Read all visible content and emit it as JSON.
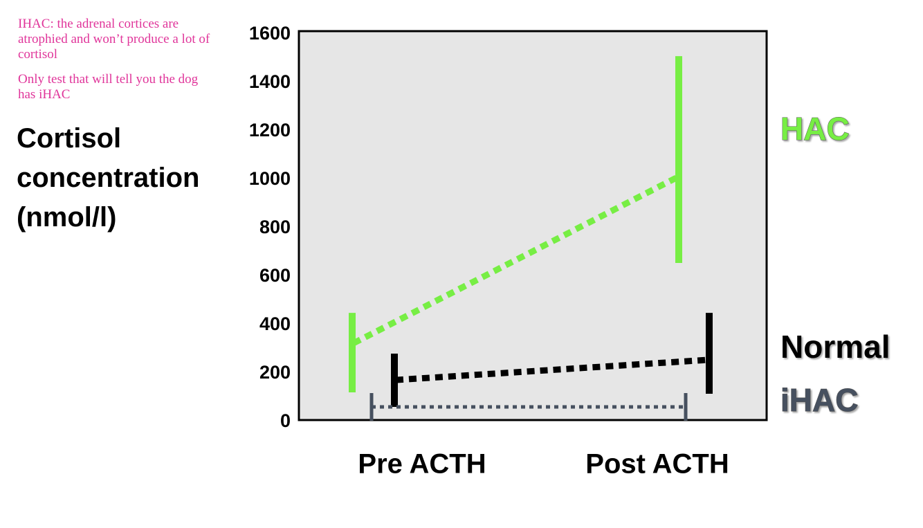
{
  "chart_data": {
    "type": "range-line",
    "annotations": [
      "IHAC: the adrenal cortices are atrophied and won’t produce a lot of cortisol",
      "Only test that will tell you the dog has iHAC"
    ],
    "ylabel": "Cortisol concentration (nmol/l)",
    "categories": [
      "Pre ACTH",
      "Post ACTH"
    ],
    "ylim": [
      0,
      1600
    ],
    "yticks": [
      0,
      200,
      400,
      600,
      800,
      1000,
      1200,
      1400,
      1600
    ],
    "series": [
      {
        "name": "HAC",
        "color": "#77ee44",
        "values": [
          326,
          1011
        ],
        "ranges": [
          [
            123,
            451
          ],
          [
            657,
            1511
          ]
        ]
      },
      {
        "name": "Normal",
        "color": "#000000",
        "values": [
          174,
          257
        ],
        "ranges": [
          [
            63,
            283
          ],
          [
            117,
            451
          ]
        ]
      },
      {
        "name": "iHAC",
        "color": "#46505f",
        "values": [
          63,
          63
        ],
        "ranges": [
          [
            6,
            120
          ],
          [
            6,
            120
          ]
        ]
      }
    ]
  }
}
